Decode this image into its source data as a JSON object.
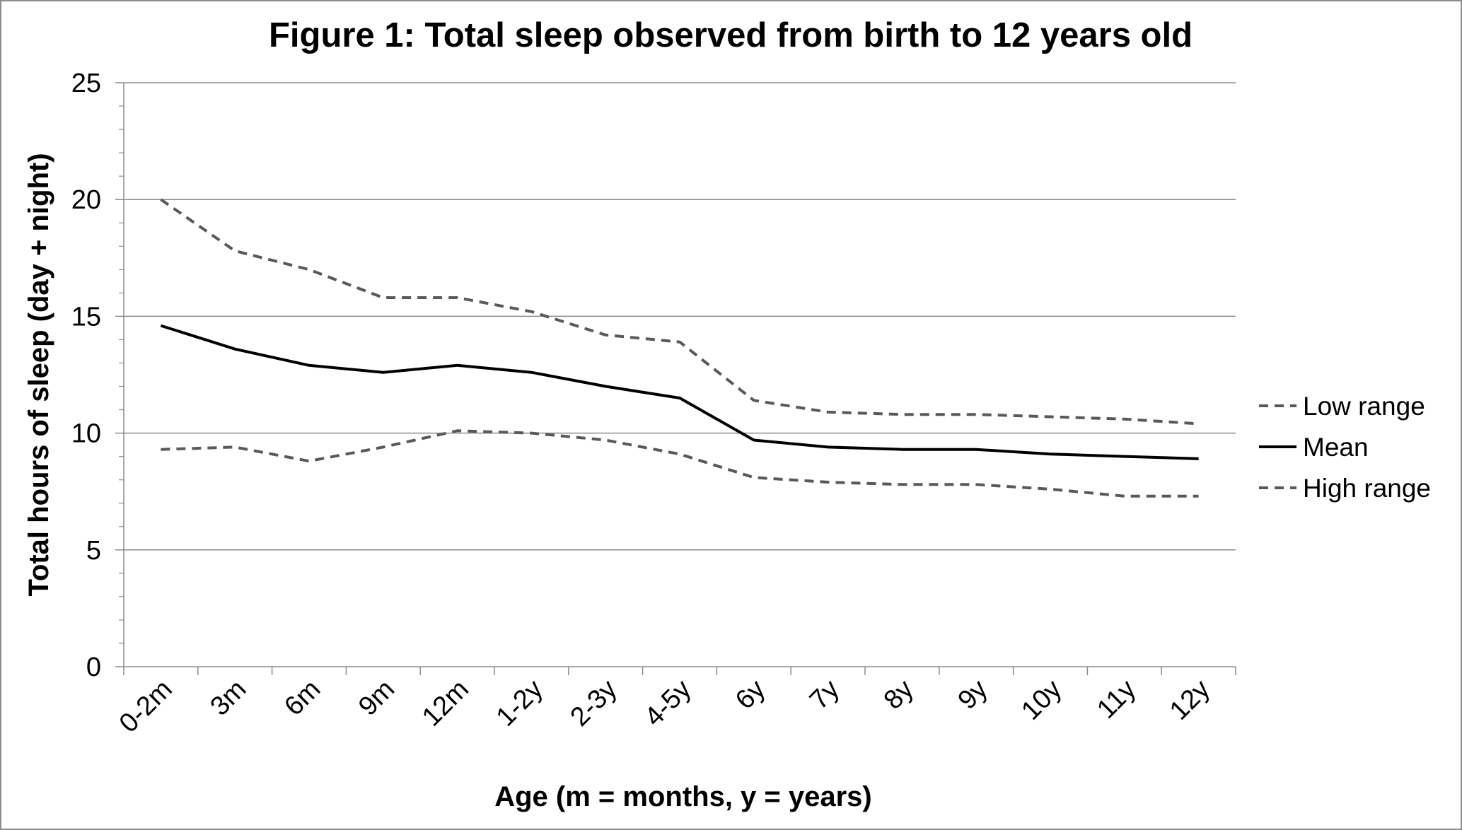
{
  "chart_data": {
    "type": "line",
    "title": "Figure 1: Total sleep observed from birth to 12 years old",
    "xlabel": "Age (m = months, y = years)",
    "ylabel": "Total hours of sleep (day + night)",
    "ylim": [
      0,
      25
    ],
    "yticks": [
      0,
      5,
      10,
      15,
      20,
      25
    ],
    "grid": true,
    "legend_position": "right",
    "categories": [
      "0-2m",
      "3m",
      "6m",
      "9m",
      "12m",
      "1-2y",
      "2-3y",
      "4-5y",
      "6y",
      "7y",
      "8y",
      "9y",
      "10y",
      "11y",
      "12y"
    ],
    "series": [
      {
        "name": "Low range",
        "style": "dashed",
        "color": "#595959",
        "values": [
          20.0,
          17.8,
          17.0,
          15.8,
          15.8,
          15.2,
          14.2,
          13.9,
          11.4,
          10.9,
          10.8,
          10.8,
          10.7,
          10.6,
          10.4
        ]
      },
      {
        "name": "Mean",
        "style": "solid",
        "color": "#000000",
        "values": [
          14.6,
          13.6,
          12.9,
          12.6,
          12.9,
          12.6,
          12.0,
          11.5,
          9.7,
          9.4,
          9.3,
          9.3,
          9.1,
          9.0,
          8.9
        ]
      },
      {
        "name": "High range",
        "style": "dashed",
        "color": "#595959",
        "values": [
          9.3,
          9.4,
          8.8,
          9.4,
          10.1,
          10.0,
          9.7,
          9.1,
          8.1,
          7.9,
          7.8,
          7.8,
          7.6,
          7.3,
          7.3
        ]
      }
    ]
  }
}
